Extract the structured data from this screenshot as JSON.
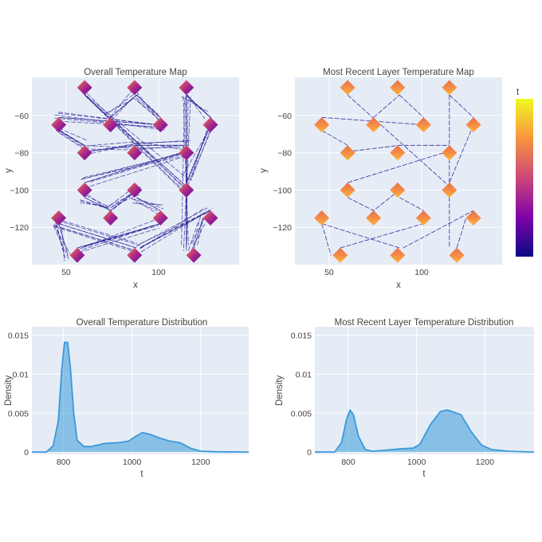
{
  "chart_data": [
    {
      "type": "heatmap-scatter",
      "title": "Overall Temperature Map",
      "xlabel": "x",
      "ylabel": "y",
      "xlim": [
        31.5,
        143.5
      ],
      "ylim": [
        -140,
        -39.5
      ],
      "xticks": [
        50,
        100
      ],
      "yticks": [
        -60,
        -80,
        -100,
        -120
      ],
      "grid": true,
      "colorscale": "plasma",
      "diamond_centers": [
        [
          60,
          -45
        ],
        [
          87,
          -45
        ],
        [
          115,
          -45
        ],
        [
          46,
          -65
        ],
        [
          74,
          -65
        ],
        [
          101,
          -65
        ],
        [
          128,
          -65
        ],
        [
          60,
          -80
        ],
        [
          87,
          -80
        ],
        [
          115,
          -80
        ],
        [
          60,
          -100
        ],
        [
          87,
          -100
        ],
        [
          115,
          -100
        ],
        [
          46,
          -115
        ],
        [
          74,
          -115
        ],
        [
          101,
          -115
        ],
        [
          128,
          -115
        ],
        [
          56,
          -135
        ],
        [
          87,
          -135
        ],
        [
          119,
          -135
        ]
      ],
      "dominant_color": "#c2407a",
      "path_color": "#1a0a8c"
    },
    {
      "type": "heatmap-scatter",
      "title": "Most Recent Layer Temperature Map",
      "xlabel": "x",
      "ylabel": "y",
      "xlim": [
        31.5,
        143.5
      ],
      "ylim": [
        -140,
        -39.5
      ],
      "xticks": [
        50,
        100
      ],
      "yticks": [
        -60,
        -80,
        -100,
        -120
      ],
      "grid": true,
      "colorscale": "plasma",
      "colorbar_title": "t",
      "diamond_centers": [
        [
          60,
          -45
        ],
        [
          87,
          -45
        ],
        [
          115,
          -45
        ],
        [
          46,
          -65
        ],
        [
          74,
          -65
        ],
        [
          101,
          -65
        ],
        [
          128,
          -65
        ],
        [
          60,
          -80
        ],
        [
          87,
          -80
        ],
        [
          115,
          -80
        ],
        [
          60,
          -100
        ],
        [
          87,
          -100
        ],
        [
          115,
          -100
        ],
        [
          46,
          -115
        ],
        [
          74,
          -115
        ],
        [
          101,
          -115
        ],
        [
          128,
          -115
        ],
        [
          56,
          -135
        ],
        [
          87,
          -135
        ],
        [
          119,
          -135
        ]
      ],
      "dominant_color": "#f58c46",
      "path_color": "#1a0a8c",
      "toolpath_segments": [
        [
          [
            60,
            -49
          ],
          [
            115,
            -98
          ]
        ],
        [
          [
            74,
            -61
          ],
          [
            88,
            -49
          ]
        ],
        [
          [
            88,
            -49
          ],
          [
            101,
            -61
          ]
        ],
        [
          [
            115,
            -49
          ],
          [
            115,
            -131
          ]
        ],
        [
          [
            115,
            -49
          ],
          [
            128,
            -61
          ]
        ],
        [
          [
            128,
            -65
          ],
          [
            115,
            -96
          ]
        ],
        [
          [
            46,
            -61
          ],
          [
            101,
            -65
          ]
        ],
        [
          [
            46,
            -68
          ],
          [
            60,
            -76
          ]
        ],
        [
          [
            63,
            -79
          ],
          [
            88,
            -76
          ],
          [
            115,
            -76
          ]
        ],
        [
          [
            60,
            -96
          ],
          [
            115,
            -79
          ]
        ],
        [
          [
            60,
            -104
          ],
          [
            74,
            -111
          ],
          [
            88,
            -100
          ]
        ],
        [
          [
            88,
            -104
          ],
          [
            101,
            -111
          ]
        ],
        [
          [
            46,
            -118
          ],
          [
            88,
            -131
          ]
        ],
        [
          [
            46,
            -118
          ],
          [
            51,
            -135
          ]
        ],
        [
          [
            56,
            -131
          ],
          [
            101,
            -118
          ]
        ],
        [
          [
            90,
            -131
          ],
          [
            128,
            -111
          ]
        ],
        [
          [
            119,
            -131
          ],
          [
            124,
            -115
          ]
        ]
      ]
    },
    {
      "type": "area",
      "title": "Overall Temperature Distribution",
      "xlabel": "t",
      "ylabel": "Density",
      "xlim": [
        708,
        1340
      ],
      "ylim": [
        -0.0003,
        0.0161
      ],
      "xticks": [
        800,
        1000,
        1200
      ],
      "yticks": [
        0,
        0.005,
        0.01,
        0.015
      ],
      "ytick_labels": [
        "0",
        "0.005",
        "0.01",
        "0.015"
      ],
      "grid": true,
      "color": "#3a9ad9",
      "x": [
        708,
        750,
        770,
        785,
        795,
        803,
        812,
        820,
        830,
        840,
        860,
        880,
        920,
        960,
        990,
        1010,
        1030,
        1050,
        1080,
        1110,
        1140,
        1170,
        1200,
        1250,
        1340
      ],
      "y": [
        0,
        0,
        0.0008,
        0.004,
        0.0105,
        0.0141,
        0.0141,
        0.011,
        0.005,
        0.0015,
        0.0007,
        0.0007,
        0.0011,
        0.0012,
        0.0014,
        0.002,
        0.0025,
        0.0023,
        0.0018,
        0.0014,
        0.0012,
        0.0005,
        0.0001,
        3e-05,
        0
      ]
    },
    {
      "type": "area",
      "title": "Most Recent Layer Temperature Distribution",
      "xlabel": "t",
      "ylabel": "Density",
      "xlim": [
        702,
        1344
      ],
      "ylim": [
        -0.0003,
        0.0161
      ],
      "xticks": [
        800,
        1000,
        1200
      ],
      "yticks": [
        0,
        0.005,
        0.01,
        0.015
      ],
      "ytick_labels": [
        "0",
        "0.005",
        "0.01",
        "0.015"
      ],
      "grid": true,
      "color": "#3a9ad9",
      "x": [
        702,
        760,
        780,
        795,
        805,
        815,
        830,
        850,
        870,
        900,
        950,
        990,
        1010,
        1040,
        1070,
        1090,
        1130,
        1160,
        1190,
        1220,
        1270,
        1344
      ],
      "y": [
        0,
        0,
        0.0012,
        0.0042,
        0.0054,
        0.0048,
        0.002,
        0.0003,
        0.0001,
        0.0002,
        0.0004,
        0.0005,
        0.001,
        0.0035,
        0.0052,
        0.0054,
        0.0048,
        0.0026,
        0.0009,
        0.0003,
        0.0001,
        0
      ]
    }
  ]
}
